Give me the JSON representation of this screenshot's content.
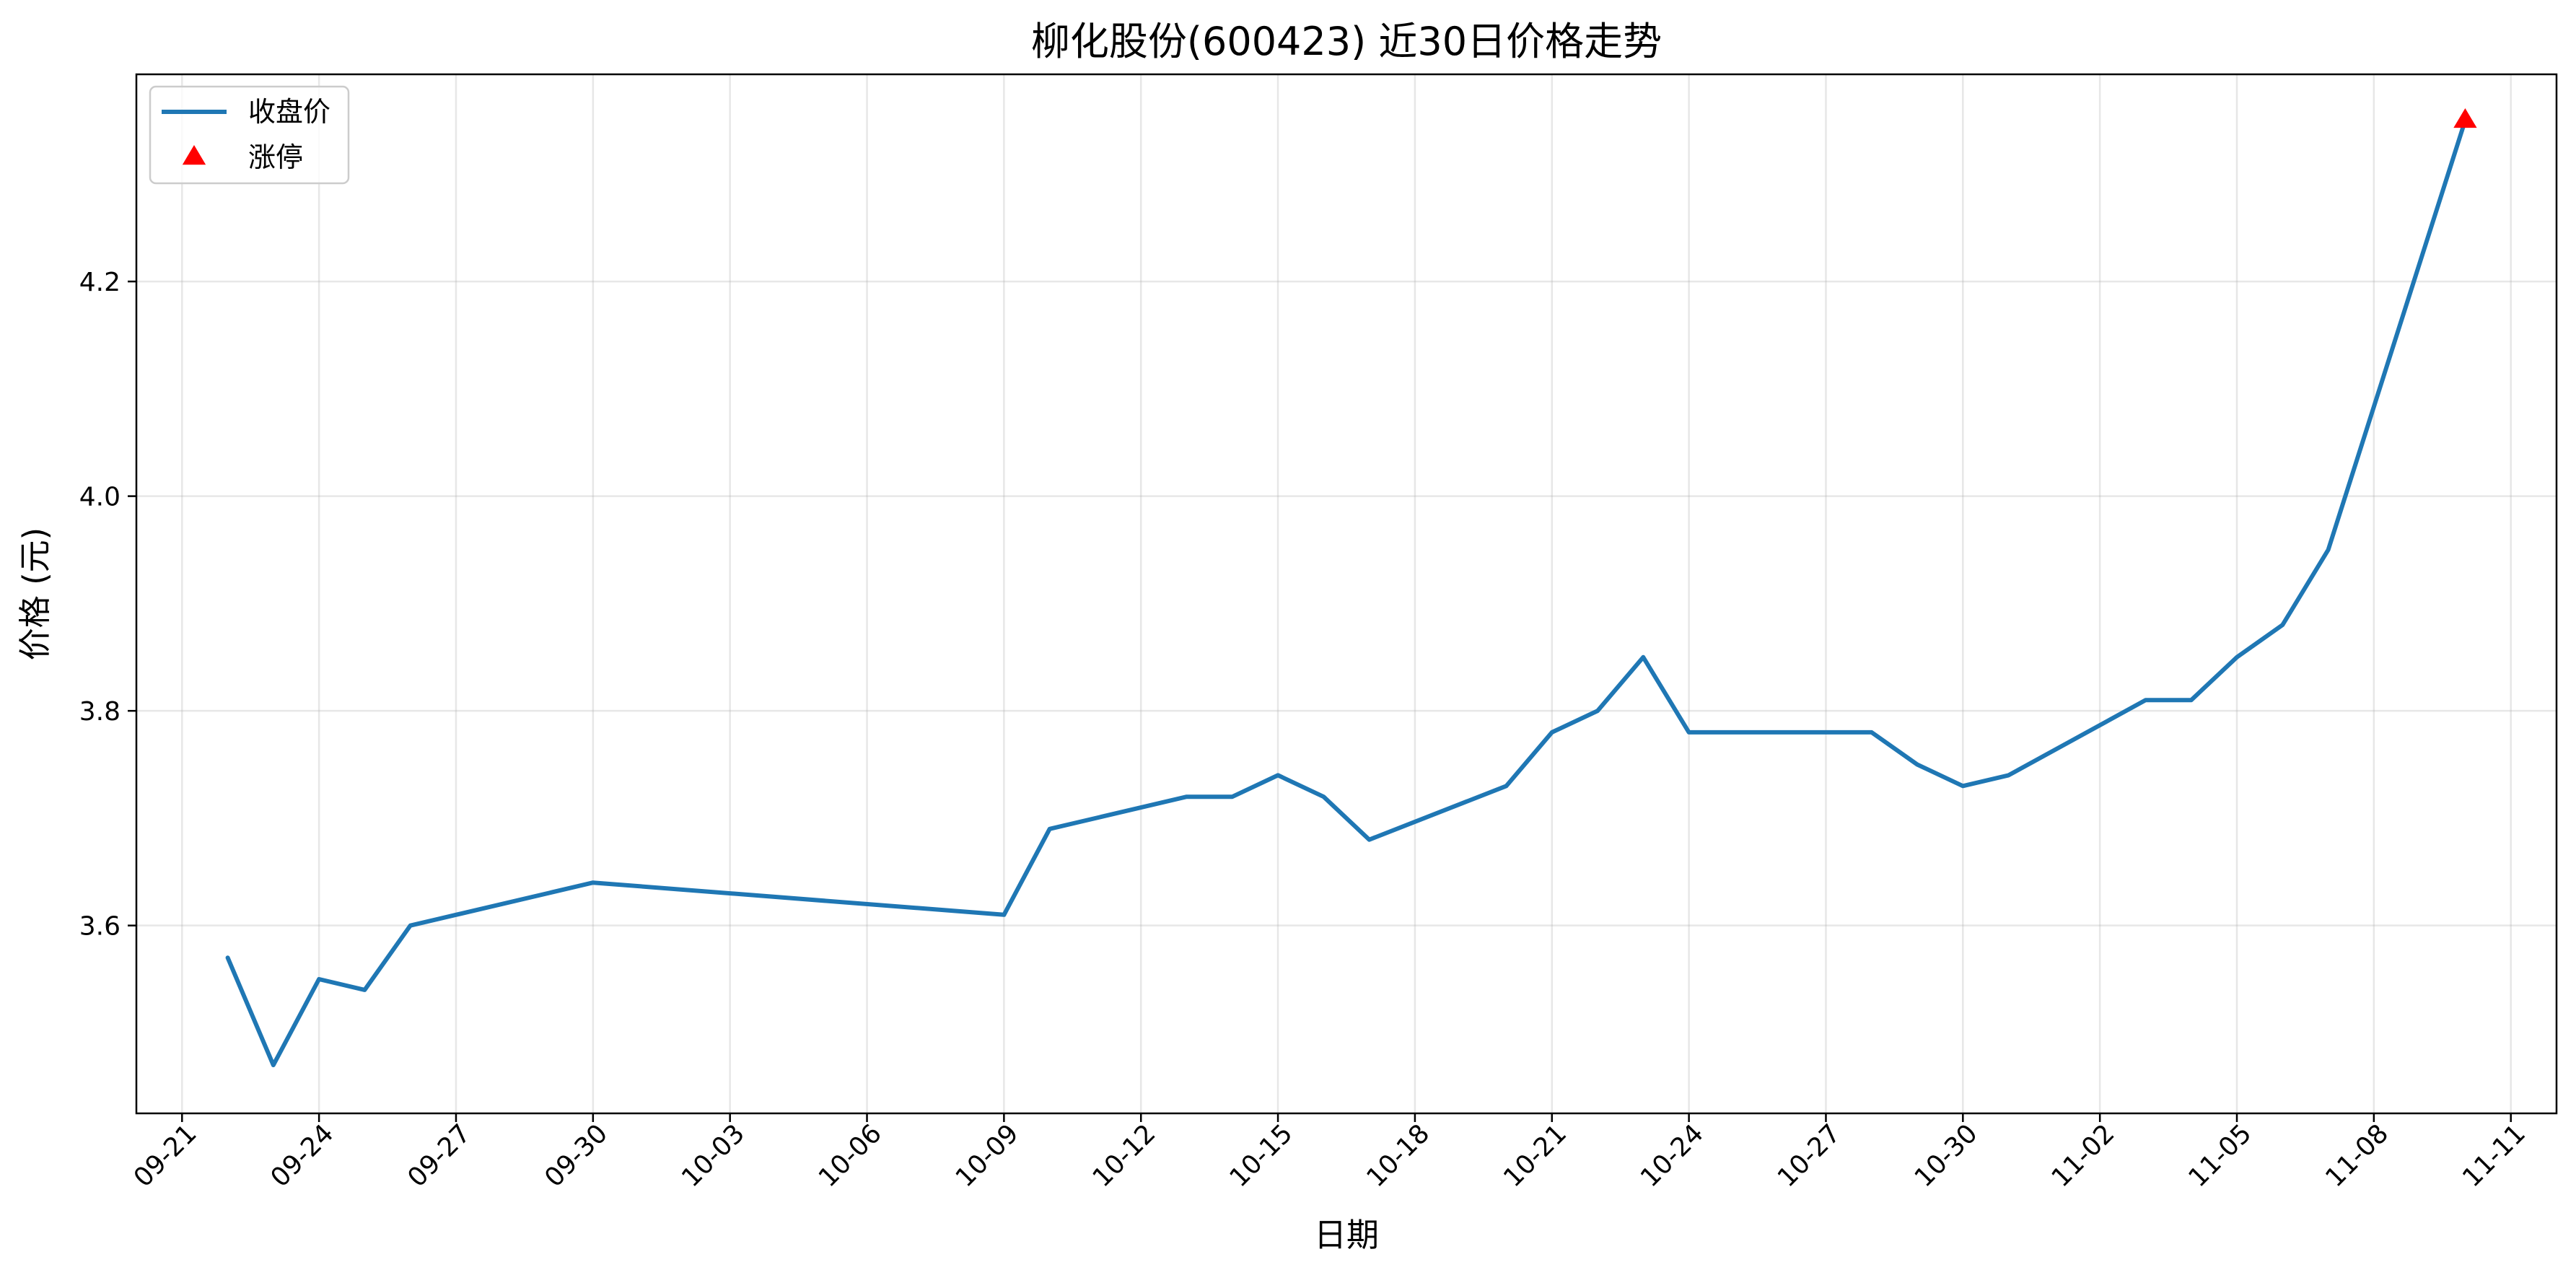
{
  "chart_data": {
    "type": "line",
    "title": "柳化股份(600423) 近30日价格走势",
    "xlabel": "日期",
    "ylabel": "价格 (元)",
    "grid": true,
    "legend_placement": "top-left",
    "colors": {
      "line": "#1f77b4",
      "marker": "#ff0000"
    },
    "year": 2024,
    "xlim": [
      "2024-09-20",
      "2024-11-12"
    ],
    "ylim": [
      3.425,
      4.393
    ],
    "x_ticks": [
      "09-21",
      "09-24",
      "09-27",
      "09-30",
      "10-03",
      "10-06",
      "10-09",
      "10-12",
      "10-15",
      "10-18",
      "10-21",
      "10-24",
      "10-27",
      "10-30",
      "11-02",
      "11-05",
      "11-08",
      "11-11"
    ],
    "y_ticks": [
      "3.6",
      "3.8",
      "4.0",
      "4.2"
    ],
    "series": [
      {
        "name": "收盘价",
        "kind": "line",
        "points": [
          {
            "x": "09-22",
            "y": 3.57
          },
          {
            "x": "09-23",
            "y": 3.47
          },
          {
            "x": "09-24",
            "y": 3.55
          },
          {
            "x": "09-25",
            "y": 3.54
          },
          {
            "x": "09-26",
            "y": 3.6
          },
          {
            "x": "09-30",
            "y": 3.64
          },
          {
            "x": "10-09",
            "y": 3.61
          },
          {
            "x": "10-10",
            "y": 3.69
          },
          {
            "x": "10-13",
            "y": 3.72
          },
          {
            "x": "10-14",
            "y": 3.72
          },
          {
            "x": "10-15",
            "y": 3.74
          },
          {
            "x": "10-16",
            "y": 3.72
          },
          {
            "x": "10-17",
            "y": 3.68
          },
          {
            "x": "10-20",
            "y": 3.73
          },
          {
            "x": "10-21",
            "y": 3.78
          },
          {
            "x": "10-22",
            "y": 3.8
          },
          {
            "x": "10-23",
            "y": 3.85
          },
          {
            "x": "10-24",
            "y": 3.78
          },
          {
            "x": "10-28",
            "y": 3.78
          },
          {
            "x": "10-29",
            "y": 3.75
          },
          {
            "x": "10-30",
            "y": 3.73
          },
          {
            "x": "10-31",
            "y": 3.74
          },
          {
            "x": "11-03",
            "y": 3.81
          },
          {
            "x": "11-04",
            "y": 3.81
          },
          {
            "x": "11-05",
            "y": 3.85
          },
          {
            "x": "11-06",
            "y": 3.88
          },
          {
            "x": "11-07",
            "y": 3.95
          },
          {
            "x": "11-10",
            "y": 4.35
          }
        ]
      },
      {
        "name": "涨停",
        "kind": "marker",
        "marker": "triangle-up",
        "points": [
          {
            "x": "11-10",
            "y": 4.35
          }
        ]
      }
    ]
  }
}
